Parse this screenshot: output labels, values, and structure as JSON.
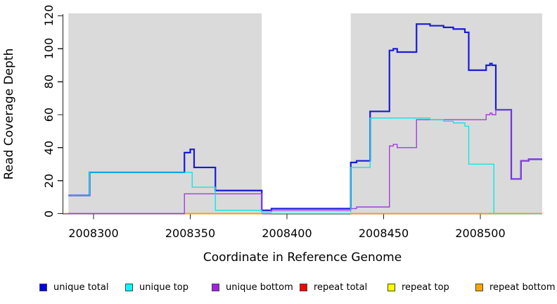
{
  "chart_data": {
    "type": "line",
    "step": true,
    "title": "",
    "xlabel": "Coordinate in Reference Genome",
    "ylabel": "Read Coverage Depth",
    "xlim": [
      2008284,
      2008532
    ],
    "ylim": [
      0,
      120
    ],
    "grid": false,
    "x_ticks": [
      2008300,
      2008350,
      2008400,
      2008450,
      2008500
    ],
    "x_tick_labels": [
      "2008300",
      "2008350",
      "2008400",
      "2008450",
      "2008500"
    ],
    "y_ticks": [
      0,
      20,
      40,
      60,
      80,
      100,
      120
    ],
    "y_tick_labels": [
      "0",
      "20",
      "40",
      "60",
      "80",
      "100",
      "120"
    ],
    "background_regions": {
      "color": "#dadada",
      "note": "shaded repeat regions",
      "ranges": [
        {
          "from": 2008287,
          "to": 2008387
        },
        {
          "from": 2008433,
          "to": 2008532
        }
      ]
    },
    "series": [
      {
        "name": "unique total",
        "line_color": "#1a1ad6",
        "line_width": 2.2,
        "segments": [
          [
            [
              2008287,
              11
            ],
            [
              2008298,
              25
            ],
            [
              2008347,
              37
            ],
            [
              2008350,
              39
            ],
            [
              2008352,
              28
            ],
            [
              2008363,
              14
            ],
            [
              2008387,
              2
            ],
            [
              2008392,
              3
            ],
            [
              2008433,
              31
            ],
            [
              2008436,
              32
            ],
            [
              2008443,
              62
            ],
            [
              2008453,
              99
            ],
            [
              2008455,
              100
            ],
            [
              2008457,
              98
            ],
            [
              2008467,
              115
            ],
            [
              2008474,
              114
            ],
            [
              2008481,
              113
            ],
            [
              2008486,
              112
            ],
            [
              2008492,
              110
            ],
            [
              2008494,
              87
            ],
            [
              2008503,
              90
            ],
            [
              2008505,
              91
            ],
            [
              2008506,
              90
            ],
            [
              2008508,
              63
            ],
            [
              2008516,
              21
            ],
            [
              2008521,
              32
            ],
            [
              2008525,
              33
            ],
            [
              2008532,
              33
            ]
          ]
        ]
      },
      {
        "name": "unique top",
        "line_color": "#00e8e8",
        "line_width": 1.3,
        "segments": [
          [
            [
              2008287,
              11
            ],
            [
              2008298,
              25
            ],
            [
              2008351,
              16
            ],
            [
              2008363,
              2
            ],
            [
              2008387,
              1
            ],
            [
              2008433,
              28
            ],
            [
              2008443,
              58
            ],
            [
              2008474,
              57
            ],
            [
              2008481,
              56
            ],
            [
              2008486,
              55
            ],
            [
              2008492,
              53
            ],
            [
              2008494,
              30
            ],
            [
              2008507,
              0
            ],
            [
              2008532,
              0
            ]
          ]
        ]
      },
      {
        "name": "unique bottom",
        "line_color": "#a43ddd",
        "line_width": 1.4,
        "segments": [
          [
            [
              2008287,
              0
            ],
            [
              2008347,
              12
            ],
            [
              2008387,
              1
            ],
            [
              2008392,
              2
            ],
            [
              2008433,
              3
            ],
            [
              2008436,
              4
            ],
            [
              2008453,
              41
            ],
            [
              2008455,
              42
            ],
            [
              2008457,
              40
            ],
            [
              2008467,
              57
            ],
            [
              2008503,
              60
            ],
            [
              2008505,
              61
            ],
            [
              2008506,
              60
            ],
            [
              2008508,
              63
            ],
            [
              2008516,
              21
            ],
            [
              2008521,
              32
            ],
            [
              2008525,
              33
            ],
            [
              2008532,
              33
            ]
          ]
        ]
      },
      {
        "name": "repeat total",
        "line_color": "#e04a78",
        "line_width": 1.5,
        "segments": [
          [
            [
              2008285,
              0
            ],
            [
              2008392,
              0
            ]
          ]
        ]
      },
      {
        "name": "repeat top",
        "line_color": "#f5f500",
        "line_width": 1.4,
        "segments": [
          [
            [
              2008347,
              0
            ],
            [
              2008387,
              0
            ]
          ]
        ]
      },
      {
        "name": "repeat bottom",
        "line_color": "#ff9e00",
        "line_width": 1.7,
        "segments": [
          [
            [
              2008347,
              0
            ],
            [
              2008387,
              0
            ]
          ],
          [
            [
              2008433,
              0
            ],
            [
              2008532,
              0
            ]
          ]
        ]
      }
    ],
    "draw_order": [
      "repeat total",
      "repeat top",
      "repeat bottom",
      "unique total",
      "unique bottom",
      "unique top"
    ],
    "legend": {
      "position": "bottom",
      "items": [
        {
          "label": "unique total",
          "color": "#0000e6"
        },
        {
          "label": "unique top",
          "color": "#00ffff"
        },
        {
          "label": "unique bottom",
          "color": "#a020f0"
        },
        {
          "label": "repeat total",
          "color": "#ff0000"
        },
        {
          "label": "repeat top",
          "color": "#ffff00"
        },
        {
          "label": "repeat bottom",
          "color": "#ffa500"
        }
      ]
    }
  },
  "labels": {
    "x_axis_title": "Coordinate in Reference Genome",
    "y_axis_title": "Read Coverage Depth"
  }
}
